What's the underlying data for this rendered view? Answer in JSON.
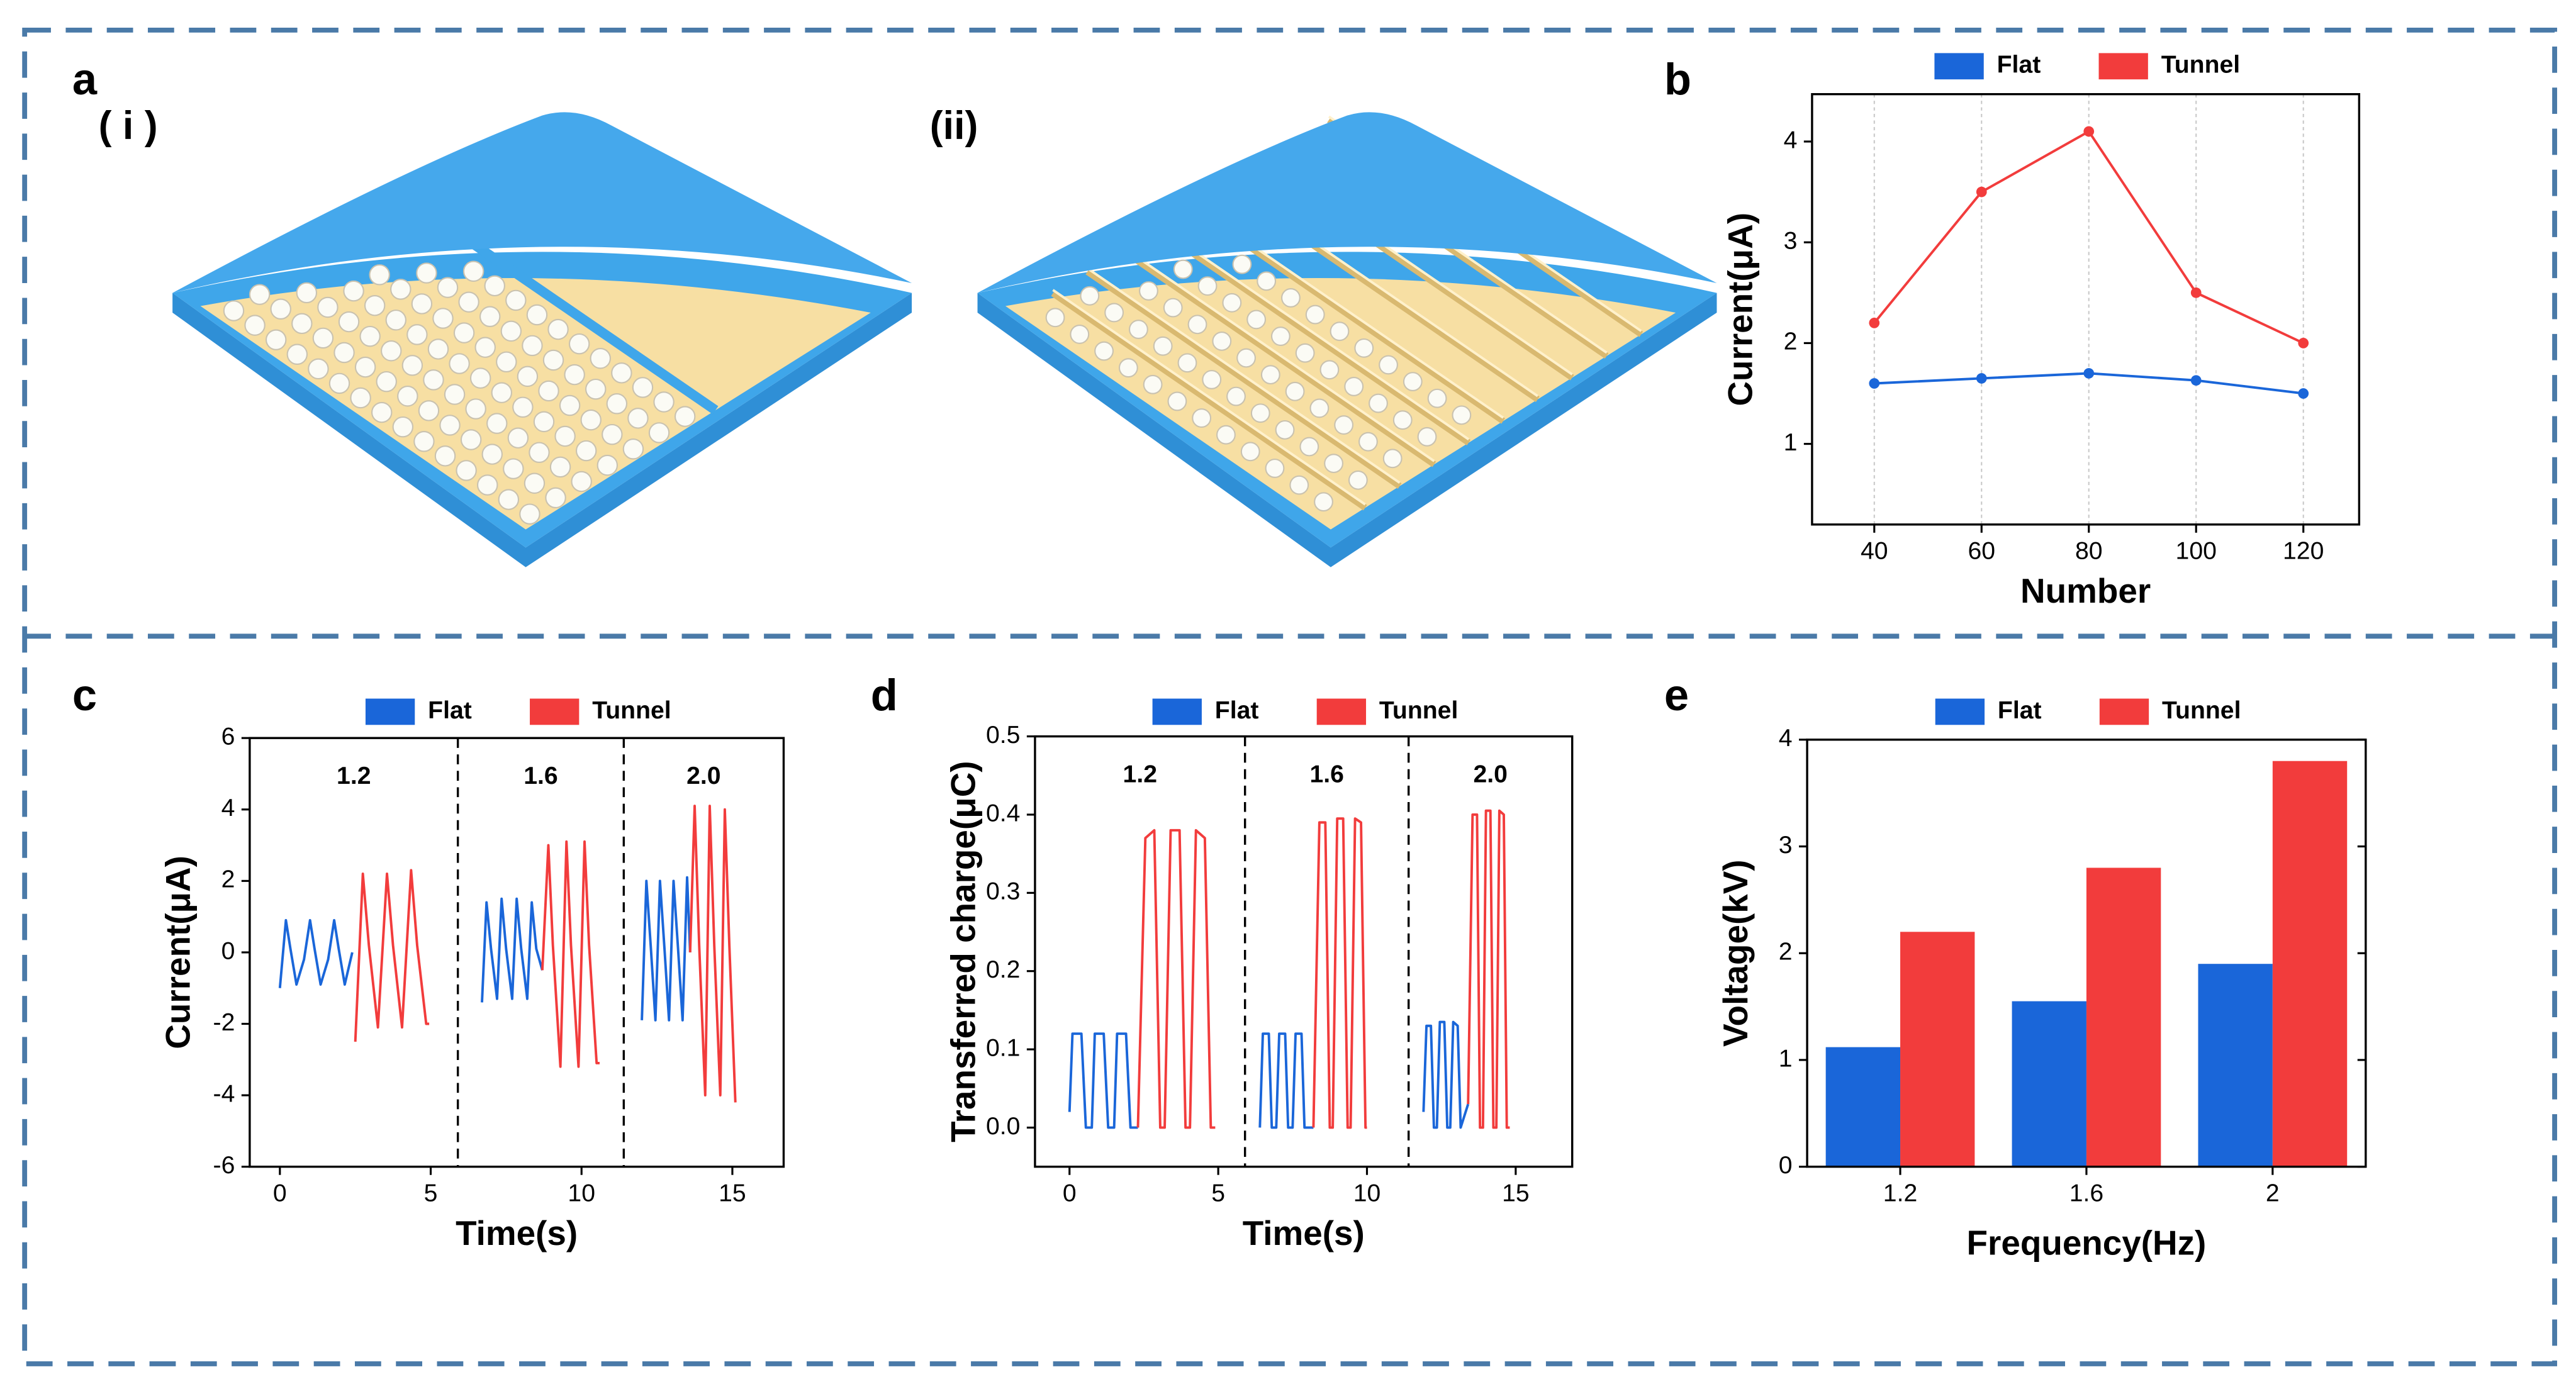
{
  "figure": {
    "panel": "a",
    "subpanels": [
      "( i )",
      "(ii)"
    ]
  },
  "chart_data": [
    {
      "panel": "b",
      "type": "line",
      "xlabel": "Number",
      "ylabel": "Current(μA)",
      "x": [
        40,
        60,
        80,
        100,
        120
      ],
      "series": [
        {
          "name": "Flat",
          "color": "#1a66d9",
          "values": [
            1.6,
            1.65,
            1.7,
            1.63,
            1.5
          ]
        },
        {
          "name": "Tunnel",
          "color": "#f23c3c",
          "values": [
            2.2,
            3.5,
            4.1,
            2.5,
            2.0
          ]
        }
      ],
      "xlim": [
        28.4,
        130.4
      ],
      "ylim": [
        0.2,
        4.47
      ],
      "xticks": [
        40,
        60,
        80,
        100,
        120
      ],
      "yticks": [
        1,
        2,
        3,
        4
      ],
      "grid": "x",
      "markers": true
    },
    {
      "panel": "c",
      "type": "line",
      "xlabel": "Time(s)",
      "ylabel": "Current(μA)",
      "annotations": [
        "1.2",
        "1.6",
        "2.0"
      ],
      "dividers": [
        5.9,
        11.4
      ],
      "series": [
        {
          "name": "Flat",
          "color": "#1a66d9",
          "x": [
            0,
            0.2,
            0.35,
            0.55,
            0.8,
            1.0,
            1.15,
            1.35,
            1.6,
            1.8,
            1.95,
            2.15,
            2.4,
            2.45,
            6.7,
            6.85,
            7.0,
            7.2,
            7.35,
            7.5,
            7.7,
            7.85,
            8.0,
            8.2,
            8.35,
            8.5,
            8.7,
            8.75,
            12.0,
            12.15,
            12.3,
            12.45,
            12.6,
            12.75,
            12.9,
            13.05,
            13.2,
            13.35,
            13.5,
            13.6
          ],
          "values": [
            -1.0,
            0.9,
            0.1,
            -0.9,
            -0.2,
            0.9,
            0.1,
            -0.9,
            -0.2,
            0.9,
            0.1,
            -0.9,
            0,
            null,
            -1.4,
            1.4,
            0.1,
            -1.3,
            1.5,
            0.1,
            -1.3,
            1.5,
            0.1,
            -1.3,
            1.4,
            0.1,
            -0.5,
            null,
            -1.9,
            2.0,
            0.1,
            -1.9,
            2.0,
            0.1,
            -1.9,
            2.0,
            0.1,
            -1.9,
            2.1,
            0.0
          ]
        },
        {
          "name": "Tunnel",
          "color": "#f23c3c",
          "x": [
            2.5,
            2.75,
            2.95,
            3.25,
            3.55,
            3.75,
            4.05,
            4.35,
            4.55,
            4.85,
            4.95,
            5.0,
            8.7,
            8.9,
            9.05,
            9.3,
            9.5,
            9.65,
            9.9,
            10.1,
            10.25,
            10.5,
            10.6,
            10.65,
            13.6,
            13.75,
            13.9,
            14.1,
            14.25,
            14.4,
            14.6,
            14.75,
            14.9,
            15.1
          ],
          "values": [
            -2.5,
            2.2,
            0.2,
            -2.1,
            2.2,
            0.2,
            -2.1,
            2.3,
            0.2,
            -2.0,
            -2.0,
            null,
            -0.5,
            3.0,
            0.2,
            -3.2,
            3.1,
            0.2,
            -3.2,
            3.1,
            0.2,
            -3.1,
            -3.1,
            null,
            0,
            4.1,
            0.2,
            -4.0,
            4.1,
            0.2,
            -4.0,
            4.0,
            0.2,
            -4.2
          ]
        }
      ],
      "xlim": [
        -1.0,
        16.7
      ],
      "ylim": [
        -6,
        6
      ],
      "xticks": [
        0,
        5,
        10,
        15
      ],
      "yticks": [
        -6,
        -4,
        -2,
        0,
        2,
        4,
        6
      ],
      "grid": false
    },
    {
      "panel": "d",
      "type": "line",
      "xlabel": "Time(s)",
      "ylabel": "Transferred charge(μC)",
      "annotations": [
        "1.2",
        "1.6",
        "2.0"
      ],
      "dividers": [
        5.9,
        11.4
      ],
      "series": [
        {
          "name": "Flat",
          "color": "#1a66d9",
          "x": [
            0,
            0.1,
            0.4,
            0.55,
            0.75,
            0.85,
            1.15,
            1.3,
            1.5,
            1.6,
            1.9,
            2.05,
            2.3,
            2.35,
            6.4,
            6.5,
            6.7,
            6.8,
            6.95,
            7.05,
            7.25,
            7.35,
            7.5,
            7.6,
            7.8,
            7.9,
            8.2,
            8.25,
            11.9,
            12.0,
            12.15,
            12.25,
            12.35,
            12.45,
            12.6,
            12.7,
            12.8,
            12.9,
            13.05,
            13.15,
            13.4
          ],
          "values": [
            0.02,
            0.12,
            0.12,
            0.0,
            0.0,
            0.12,
            0.12,
            0.0,
            0.0,
            0.12,
            0.12,
            0.0,
            0.0,
            null,
            0.0,
            0.12,
            0.12,
            0.0,
            0.0,
            0.12,
            0.12,
            0.0,
            0.0,
            0.12,
            0.12,
            0.0,
            0.0,
            null,
            0.02,
            0.13,
            0.13,
            0.0,
            0.0,
            0.135,
            0.135,
            0.0,
            0.0,
            0.135,
            0.13,
            0.0,
            0.03
          ]
        },
        {
          "name": "Tunnel",
          "color": "#f23c3c",
          "x": [
            2.3,
            2.55,
            2.85,
            3.05,
            3.2,
            3.4,
            3.7,
            3.9,
            4.05,
            4.25,
            4.55,
            4.75,
            4.9,
            4.95,
            8.2,
            8.4,
            8.6,
            8.75,
            8.85,
            9.0,
            9.2,
            9.35,
            9.45,
            9.6,
            9.8,
            9.95,
            10.0,
            10.05,
            13.4,
            13.55,
            13.7,
            13.8,
            13.9,
            14.0,
            14.15,
            14.25,
            14.35,
            14.45,
            14.6,
            14.7,
            14.8
          ],
          "values": [
            0.0,
            0.37,
            0.38,
            0.0,
            0.0,
            0.38,
            0.38,
            0.0,
            0.0,
            0.38,
            0.37,
            0.0,
            0.0,
            null,
            0.0,
            0.39,
            0.39,
            0.0,
            0.0,
            0.395,
            0.395,
            0.0,
            0.0,
            0.395,
            0.39,
            0.0,
            0.0,
            null,
            0.03,
            0.4,
            0.4,
            0.0,
            0.0,
            0.405,
            0.405,
            0.0,
            0.0,
            0.405,
            0.4,
            0.0,
            0.0
          ]
        }
      ],
      "xlim": [
        -1.16,
        16.9
      ],
      "ylim": [
        -0.05,
        0.5
      ],
      "xticks": [
        0,
        5,
        10,
        15
      ],
      "yticks": [
        {
          "value": 0,
          "label": "0.0"
        },
        0.1,
        0.2,
        0.3,
        0.4,
        0.5
      ],
      "grid": false
    },
    {
      "panel": "e",
      "type": "bar",
      "xlabel": "Frequency(Hz)",
      "ylabel": "Voltage(kV)",
      "categories": [
        "1.2",
        "1.6",
        "2"
      ],
      "series": [
        {
          "name": "Flat",
          "color": "#1a66d9",
          "values": [
            1.12,
            1.55,
            1.9
          ]
        },
        {
          "name": "Tunnel",
          "color": "#f23c3c",
          "values": [
            2.2,
            2.8,
            3.8
          ]
        }
      ],
      "ylim": [
        0,
        4
      ],
      "yticks": [
        0,
        1,
        2,
        3,
        4
      ],
      "grid": false
    }
  ]
}
